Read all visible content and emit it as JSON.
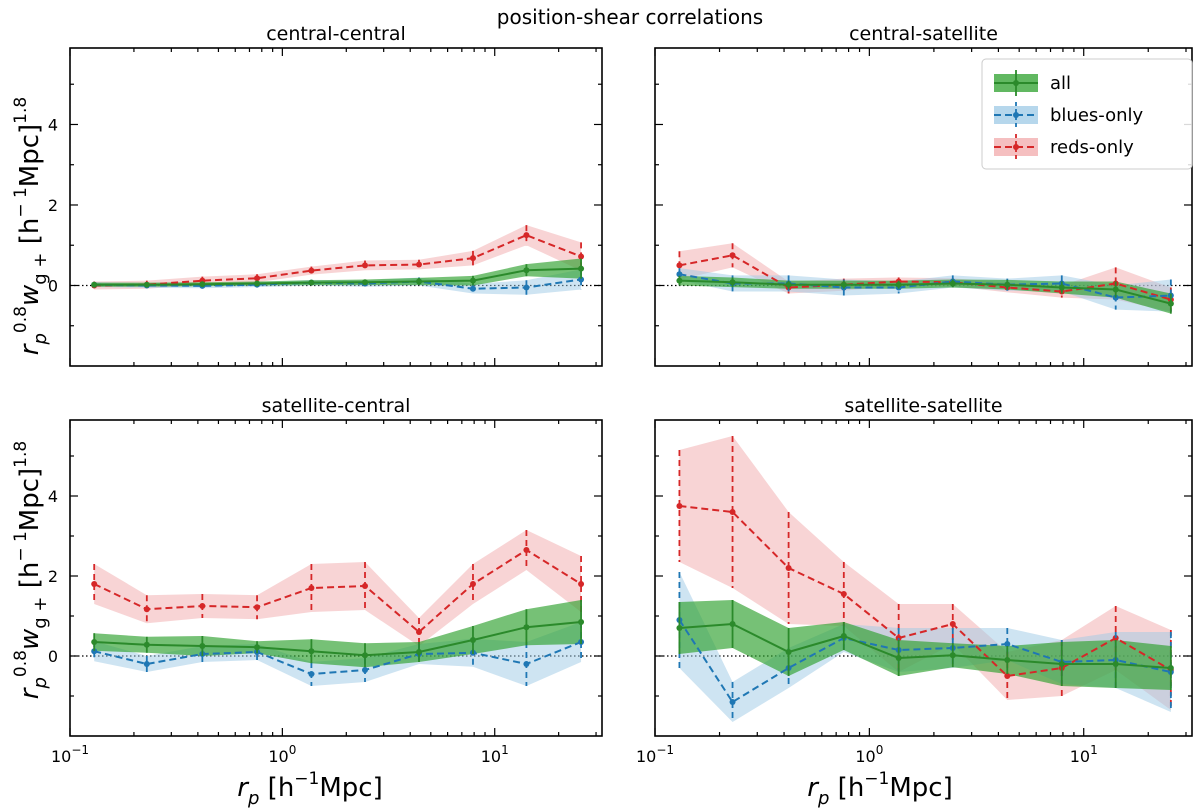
{
  "figure": {
    "suptitle": "position-shear correlations",
    "ylabel": {
      "main": "r",
      "sub": "p",
      "sup1": "0.8",
      "w": "w",
      "wsub": "g +",
      "unit": " [h",
      "unitsup": "− 1",
      "unitend": "Mpc]",
      "sup2": "1.8"
    },
    "xlabel": {
      "main": "r",
      "sub": "p",
      "unit": " [h",
      "unitsup": "−1",
      "unitend": "Mpc]"
    },
    "yticks": [
      "4",
      "2",
      "0"
    ],
    "xticks": [
      {
        "base": "10",
        "exp": "−1"
      },
      {
        "base": "10",
        "exp": "0"
      },
      {
        "base": "10",
        "exp": "1"
      }
    ],
    "legend": [
      "all",
      "blues-only",
      "reds-only"
    ]
  },
  "colors": {
    "all": "#2b8a2b",
    "blues": "#1f77b4",
    "reds": "#d62728",
    "all_band": "#2ca02c",
    "blues_band": "#9ec9e6",
    "reds_band": "#f2aaab"
  },
  "chart_data": [
    {
      "type": "line",
      "title": "central-central",
      "x_scale": "log",
      "xlim": [
        0.1,
        32
      ],
      "ylim": [
        -2.0,
        5.9
      ],
      "x": [
        0.13,
        0.23,
        0.42,
        0.76,
        1.37,
        2.45,
        4.4,
        7.9,
        14.1,
        25.5
      ],
      "series": [
        {
          "name": "all",
          "values": [
            0.02,
            0.02,
            0.03,
            0.05,
            0.07,
            0.08,
            0.1,
            0.12,
            0.38,
            0.42
          ],
          "err": [
            0.05,
            0.05,
            0.05,
            0.05,
            0.06,
            0.07,
            0.09,
            0.12,
            0.15,
            0.25
          ]
        },
        {
          "name": "blues-only",
          "values": [
            0.02,
            0.0,
            -0.01,
            0.02,
            0.07,
            0.05,
            0.1,
            -0.08,
            -0.05,
            0.15
          ],
          "err": [
            0.06,
            0.06,
            0.06,
            0.06,
            0.07,
            0.08,
            0.1,
            0.12,
            0.18,
            0.25
          ]
        },
        {
          "name": "reds-only",
          "values": [
            0.0,
            0.02,
            0.12,
            0.18,
            0.37,
            0.5,
            0.52,
            0.68,
            1.25,
            0.72
          ],
          "err": [
            0.1,
            0.1,
            0.1,
            0.1,
            0.1,
            0.12,
            0.12,
            0.18,
            0.25,
            0.35
          ]
        }
      ]
    },
    {
      "type": "line",
      "title": "central-satellite",
      "x_scale": "log",
      "xlim": [
        0.1,
        32
      ],
      "ylim": [
        -2.0,
        5.9
      ],
      "x": [
        0.13,
        0.23,
        0.42,
        0.76,
        1.37,
        2.45,
        4.4,
        7.9,
        14.1,
        25.5
      ],
      "series": [
        {
          "name": "all",
          "values": [
            0.12,
            0.08,
            0.02,
            0.02,
            0.02,
            0.05,
            0.02,
            -0.05,
            -0.1,
            -0.45
          ],
          "err": [
            0.12,
            0.12,
            0.1,
            0.1,
            0.1,
            0.1,
            0.12,
            0.15,
            0.2,
            0.25
          ]
        },
        {
          "name": "blues-only",
          "values": [
            0.28,
            0.05,
            0.05,
            -0.05,
            -0.05,
            0.1,
            0.02,
            0.05,
            -0.3,
            -0.25
          ],
          "err": [
            0.15,
            0.2,
            0.2,
            0.2,
            0.15,
            0.15,
            0.15,
            0.2,
            0.3,
            0.4
          ]
        },
        {
          "name": "reds-only",
          "values": [
            0.5,
            0.75,
            -0.05,
            0.02,
            0.1,
            0.08,
            -0.05,
            -0.15,
            0.05,
            -0.35
          ],
          "err": [
            0.35,
            0.3,
            0.15,
            0.15,
            0.1,
            0.1,
            0.12,
            0.15,
            0.4,
            0.3
          ]
        }
      ]
    },
    {
      "type": "line",
      "title": "satellite-central",
      "x_scale": "log",
      "xlim": [
        0.1,
        32
      ],
      "ylim": [
        -2.0,
        5.9
      ],
      "x": [
        0.13,
        0.23,
        0.42,
        0.76,
        1.37,
        2.45,
        4.4,
        7.9,
        14.1,
        25.5
      ],
      "series": [
        {
          "name": "all",
          "values": [
            0.35,
            0.28,
            0.25,
            0.22,
            0.12,
            0.02,
            0.1,
            0.4,
            0.72,
            0.85
          ],
          "err": [
            0.22,
            0.2,
            0.25,
            0.15,
            0.3,
            0.3,
            0.25,
            0.35,
            0.45,
            0.55
          ]
        },
        {
          "name": "blues-only",
          "values": [
            0.12,
            -0.2,
            0.05,
            0.1,
            -0.45,
            -0.35,
            0.05,
            0.08,
            -0.2,
            0.35
          ],
          "err": [
            0.25,
            0.2,
            0.2,
            0.2,
            0.3,
            0.3,
            0.25,
            0.35,
            0.55,
            0.5
          ]
        },
        {
          "name": "reds-only",
          "values": [
            1.8,
            1.17,
            1.25,
            1.22,
            1.7,
            1.75,
            0.6,
            1.8,
            2.65,
            1.8
          ],
          "err": [
            0.5,
            0.35,
            0.3,
            0.3,
            0.6,
            0.6,
            0.35,
            0.5,
            0.5,
            0.7
          ]
        }
      ]
    },
    {
      "type": "line",
      "title": "satellite-satellite",
      "x_scale": "log",
      "xlim": [
        0.1,
        32
      ],
      "ylim": [
        -2.0,
        5.9
      ],
      "x": [
        0.13,
        0.23,
        0.42,
        0.76,
        1.37,
        2.45,
        4.4,
        7.9,
        14.1,
        25.5
      ],
      "series": [
        {
          "name": "all",
          "values": [
            0.7,
            0.8,
            0.1,
            0.5,
            -0.05,
            0.02,
            -0.1,
            -0.2,
            -0.2,
            -0.3
          ],
          "err": [
            0.65,
            0.6,
            0.6,
            0.35,
            0.45,
            0.3,
            0.35,
            0.55,
            0.6,
            0.55
          ]
        },
        {
          "name": "blues-only",
          "values": [
            0.9,
            -1.15,
            -0.3,
            0.45,
            0.15,
            0.2,
            0.3,
            -0.15,
            -0.1,
            -0.4
          ],
          "err": [
            1.2,
            0.5,
            0.5,
            0.35,
            0.55,
            0.5,
            0.4,
            0.55,
            0.7,
            1.0
          ]
        },
        {
          "name": "reds-only",
          "values": [
            3.75,
            3.6,
            2.2,
            1.55,
            0.45,
            0.8,
            -0.5,
            -0.3,
            0.45,
            -0.35
          ],
          "err": [
            1.4,
            1.9,
            1.4,
            0.8,
            0.85,
            0.5,
            0.6,
            0.7,
            0.8,
            1.0
          ]
        }
      ]
    }
  ]
}
